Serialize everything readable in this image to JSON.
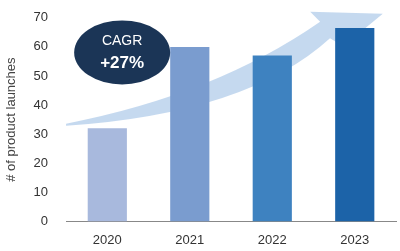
{
  "chart_data": {
    "type": "bar",
    "categories": [
      "2020",
      "2021",
      "2022",
      "2023"
    ],
    "values": [
      32,
      60,
      57,
      66.5
    ],
    "colors": [
      "#a8b9dd",
      "#7a9ccf",
      "#3e82c0",
      "#1c63a8"
    ],
    "y_label": "# of product launches",
    "ylim": [
      0,
      70
    ],
    "yticks": [
      0,
      10,
      20,
      30,
      40,
      50,
      60,
      70
    ],
    "grid": false,
    "annotation": {
      "label": "CAGR",
      "text": "+27%"
    }
  }
}
